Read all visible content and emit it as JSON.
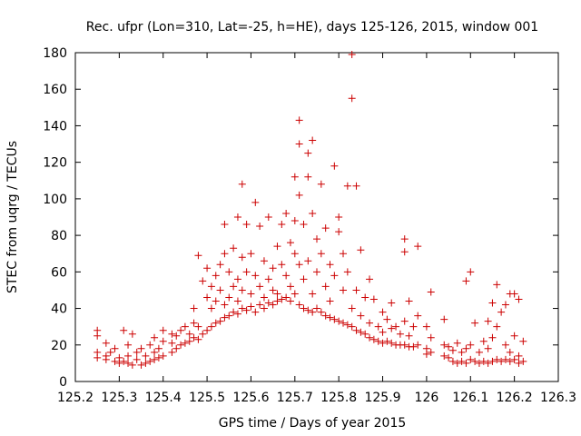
{
  "chart_data": {
    "type": "scatter",
    "title": "Rec. ufpr (Lon=310, Lat=-25, h=HE), days 125-126, 2015, window 001",
    "xlabel": "GPS time / Days of year 2015",
    "ylabel": "STEC from uqrg / TECUs",
    "xlim": [
      125.2,
      126.3
    ],
    "ylim": [
      0,
      180
    ],
    "xticks": [
      "125.2",
      "125.3",
      "125.4",
      "125.5",
      "125.6",
      "125.7",
      "125.8",
      "125.9",
      "126",
      "126.1",
      "126.2",
      "126.3"
    ],
    "yticks": [
      "0",
      "20",
      "40",
      "60",
      "80",
      "100",
      "120",
      "140",
      "160",
      "180"
    ],
    "grid": false,
    "marker": "plus",
    "color": "#cc0000",
    "points": [
      [
        125.25,
        16
      ],
      [
        125.25,
        13
      ],
      [
        125.25,
        25
      ],
      [
        125.25,
        28
      ],
      [
        125.27,
        14
      ],
      [
        125.27,
        12
      ],
      [
        125.27,
        21
      ],
      [
        125.28,
        16
      ],
      [
        125.29,
        11
      ],
      [
        125.29,
        18
      ],
      [
        125.3,
        10
      ],
      [
        125.3,
        13
      ],
      [
        125.31,
        11
      ],
      [
        125.31,
        28
      ],
      [
        125.32,
        10
      ],
      [
        125.32,
        14
      ],
      [
        125.32,
        20
      ],
      [
        125.33,
        9
      ],
      [
        125.33,
        26
      ],
      [
        125.34,
        12
      ],
      [
        125.34,
        16
      ],
      [
        125.35,
        9
      ],
      [
        125.35,
        18
      ],
      [
        125.36,
        10
      ],
      [
        125.36,
        14
      ],
      [
        125.37,
        11
      ],
      [
        125.37,
        20
      ],
      [
        125.38,
        12
      ],
      [
        125.38,
        16
      ],
      [
        125.38,
        24
      ],
      [
        125.39,
        13
      ],
      [
        125.39,
        18
      ],
      [
        125.4,
        14
      ],
      [
        125.4,
        22
      ],
      [
        125.4,
        28
      ],
      [
        125.42,
        16
      ],
      [
        125.42,
        21
      ],
      [
        125.42,
        26
      ],
      [
        125.43,
        18
      ],
      [
        125.43,
        25
      ],
      [
        125.44,
        20
      ],
      [
        125.44,
        28
      ],
      [
        125.45,
        21
      ],
      [
        125.45,
        30
      ],
      [
        125.46,
        22
      ],
      [
        125.46,
        26
      ],
      [
        125.47,
        24
      ],
      [
        125.47,
        40
      ],
      [
        125.47,
        32
      ],
      [
        125.48,
        23
      ],
      [
        125.48,
        30
      ],
      [
        125.48,
        69
      ],
      [
        125.49,
        26
      ],
      [
        125.49,
        55
      ],
      [
        125.5,
        28
      ],
      [
        125.5,
        46
      ],
      [
        125.5,
        62
      ],
      [
        125.51,
        30
      ],
      [
        125.51,
        40
      ],
      [
        125.51,
        52
      ],
      [
        125.52,
        32
      ],
      [
        125.52,
        44
      ],
      [
        125.52,
        58
      ],
      [
        125.53,
        33
      ],
      [
        125.53,
        64
      ],
      [
        125.53,
        50
      ],
      [
        125.54,
        35
      ],
      [
        125.54,
        86
      ],
      [
        125.54,
        70
      ],
      [
        125.54,
        42
      ],
      [
        125.55,
        36
      ],
      [
        125.55,
        46
      ],
      [
        125.55,
        60
      ],
      [
        125.56,
        38
      ],
      [
        125.56,
        73
      ],
      [
        125.56,
        52
      ],
      [
        125.57,
        37
      ],
      [
        125.57,
        90
      ],
      [
        125.57,
        56
      ],
      [
        125.57,
        44
      ],
      [
        125.58,
        40
      ],
      [
        125.58,
        108
      ],
      [
        125.58,
        68
      ],
      [
        125.58,
        50
      ],
      [
        125.59,
        39
      ],
      [
        125.59,
        60
      ],
      [
        125.59,
        86
      ],
      [
        125.6,
        41
      ],
      [
        125.6,
        48
      ],
      [
        125.6,
        70
      ],
      [
        125.61,
        38
      ],
      [
        125.61,
        98
      ],
      [
        125.61,
        58
      ],
      [
        125.62,
        42
      ],
      [
        125.62,
        52
      ],
      [
        125.62,
        85
      ],
      [
        125.63,
        40
      ],
      [
        125.63,
        66
      ],
      [
        125.63,
        46
      ],
      [
        125.64,
        43
      ],
      [
        125.64,
        56
      ],
      [
        125.64,
        90
      ],
      [
        125.65,
        42
      ],
      [
        125.65,
        62
      ],
      [
        125.65,
        50
      ],
      [
        125.66,
        44
      ],
      [
        125.66,
        74
      ],
      [
        125.66,
        48
      ],
      [
        125.67,
        45
      ],
      [
        125.67,
        86
      ],
      [
        125.67,
        64
      ],
      [
        125.68,
        46
      ],
      [
        125.68,
        92
      ],
      [
        125.68,
        58
      ],
      [
        125.69,
        44
      ],
      [
        125.69,
        76
      ],
      [
        125.69,
        52
      ],
      [
        125.7,
        48
      ],
      [
        125.7,
        112
      ],
      [
        125.7,
        88
      ],
      [
        125.7,
        70
      ],
      [
        125.71,
        42
      ],
      [
        125.71,
        102
      ],
      [
        125.71,
        130
      ],
      [
        125.71,
        143
      ],
      [
        125.71,
        64
      ],
      [
        125.72,
        40
      ],
      [
        125.72,
        86
      ],
      [
        125.72,
        56
      ],
      [
        125.73,
        39
      ],
      [
        125.73,
        112
      ],
      [
        125.73,
        125
      ],
      [
        125.73,
        66
      ],
      [
        125.74,
        38
      ],
      [
        125.74,
        132
      ],
      [
        125.74,
        92
      ],
      [
        125.74,
        48
      ],
      [
        125.75,
        40
      ],
      [
        125.75,
        78
      ],
      [
        125.75,
        60
      ],
      [
        125.76,
        38
      ],
      [
        125.76,
        108
      ],
      [
        125.76,
        70
      ],
      [
        125.77,
        36
      ],
      [
        125.77,
        84
      ],
      [
        125.77,
        52
      ],
      [
        125.78,
        35
      ],
      [
        125.78,
        64
      ],
      [
        125.78,
        44
      ],
      [
        125.79,
        34
      ],
      [
        125.79,
        118
      ],
      [
        125.79,
        58
      ],
      [
        125.8,
        33
      ],
      [
        125.8,
        90
      ],
      [
        125.8,
        82
      ],
      [
        125.81,
        32
      ],
      [
        125.81,
        70
      ],
      [
        125.81,
        50
      ],
      [
        125.82,
        31
      ],
      [
        125.82,
        107
      ],
      [
        125.82,
        60
      ],
      [
        125.83,
        30
      ],
      [
        125.83,
        155
      ],
      [
        125.83,
        179
      ],
      [
        125.83,
        40
      ],
      [
        125.84,
        28
      ],
      [
        125.84,
        107
      ],
      [
        125.84,
        50
      ],
      [
        125.85,
        27
      ],
      [
        125.85,
        72
      ],
      [
        125.85,
        36
      ],
      [
        125.86,
        26
      ],
      [
        125.86,
        46
      ],
      [
        125.87,
        24
      ],
      [
        125.87,
        56
      ],
      [
        125.87,
        32
      ],
      [
        125.88,
        23
      ],
      [
        125.88,
        45
      ],
      [
        125.89,
        22
      ],
      [
        125.89,
        30
      ],
      [
        125.9,
        21
      ],
      [
        125.9,
        38
      ],
      [
        125.9,
        27
      ],
      [
        125.91,
        22
      ],
      [
        125.91,
        34
      ],
      [
        125.92,
        21
      ],
      [
        125.92,
        29
      ],
      [
        125.92,
        43
      ],
      [
        125.93,
        20
      ],
      [
        125.93,
        30
      ],
      [
        125.94,
        20
      ],
      [
        125.94,
        26
      ],
      [
        125.95,
        20
      ],
      [
        125.95,
        78
      ],
      [
        125.95,
        71
      ],
      [
        125.95,
        33
      ],
      [
        125.96,
        19
      ],
      [
        125.96,
        44
      ],
      [
        125.96,
        25
      ],
      [
        125.97,
        19
      ],
      [
        125.97,
        30
      ],
      [
        125.98,
        20
      ],
      [
        125.98,
        74
      ],
      [
        125.98,
        36
      ],
      [
        126.0,
        18
      ],
      [
        126.0,
        30
      ],
      [
        126.0,
        15
      ],
      [
        126.01,
        16
      ],
      [
        126.01,
        49
      ],
      [
        126.01,
        24
      ],
      [
        126.04,
        20
      ],
      [
        126.04,
        34
      ],
      [
        126.04,
        14
      ],
      [
        126.05,
        13
      ],
      [
        126.05,
        19
      ],
      [
        126.06,
        11
      ],
      [
        126.06,
        17
      ],
      [
        126.07,
        10
      ],
      [
        126.07,
        21
      ],
      [
        126.08,
        11
      ],
      [
        126.08,
        16
      ],
      [
        126.09,
        10
      ],
      [
        126.09,
        55
      ],
      [
        126.09,
        18
      ],
      [
        126.1,
        12
      ],
      [
        126.1,
        60
      ],
      [
        126.1,
        20
      ],
      [
        126.11,
        11
      ],
      [
        126.11,
        32
      ],
      [
        126.12,
        10
      ],
      [
        126.12,
        16
      ],
      [
        126.13,
        11
      ],
      [
        126.13,
        22
      ],
      [
        126.14,
        10
      ],
      [
        126.14,
        33
      ],
      [
        126.14,
        18
      ],
      [
        126.15,
        11
      ],
      [
        126.15,
        43
      ],
      [
        126.15,
        24
      ],
      [
        126.16,
        12
      ],
      [
        126.16,
        53
      ],
      [
        126.16,
        30
      ],
      [
        126.17,
        11
      ],
      [
        126.17,
        38
      ],
      [
        126.18,
        12
      ],
      [
        126.18,
        42
      ],
      [
        126.18,
        20
      ],
      [
        126.19,
        11
      ],
      [
        126.19,
        48
      ],
      [
        126.19,
        16
      ],
      [
        126.2,
        12
      ],
      [
        126.2,
        25
      ],
      [
        126.2,
        48
      ],
      [
        126.21,
        10
      ],
      [
        126.21,
        45
      ],
      [
        126.21,
        14
      ],
      [
        126.22,
        11
      ],
      [
        126.22,
        22
      ]
    ]
  }
}
